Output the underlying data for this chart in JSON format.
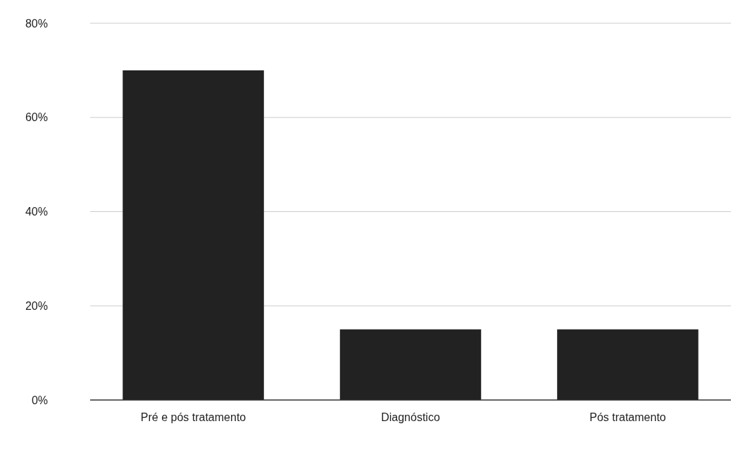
{
  "chart_data": {
    "type": "bar",
    "categories": [
      "Pré e pós tratamento",
      "Diagnóstico",
      "Pós tratamento"
    ],
    "values": [
      70,
      15,
      15
    ],
    "color": "#222222",
    "ylim": [
      0,
      80
    ],
    "yticks": [
      {
        "value": 0,
        "label": "0%"
      },
      {
        "value": 20,
        "label": "20%"
      },
      {
        "value": 40,
        "label": "40%"
      },
      {
        "value": 60,
        "label": "60%"
      },
      {
        "value": 80,
        "label": "80%"
      }
    ],
    "grid": "y"
  }
}
